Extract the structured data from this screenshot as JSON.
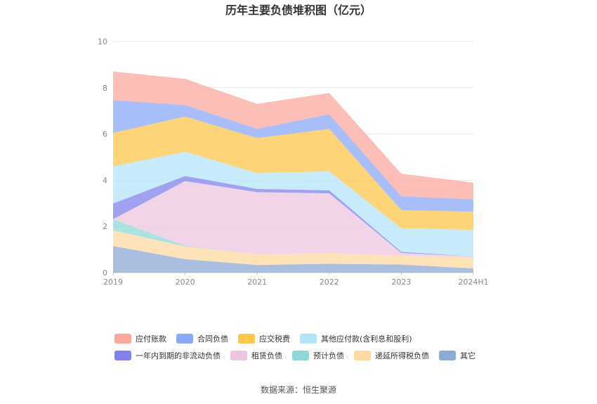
{
  "source_text": "数据来源：恒生聚源",
  "chart_data": {
    "type": "area",
    "stacked": true,
    "title": "历年主要负债堆积图（亿元）",
    "xlabel": "",
    "ylabel": "",
    "categories": [
      "2019",
      "2020",
      "2021",
      "2022",
      "2023",
      "2024H1"
    ],
    "ylim": [
      0,
      10
    ],
    "yticks": [
      0,
      2,
      4,
      6,
      8,
      10
    ],
    "grid": true,
    "legend_position": "bottom",
    "series": [
      {
        "name": "其它",
        "color": "#8eaad6",
        "values": [
          1.15,
          0.58,
          0.33,
          0.38,
          0.35,
          0.18
        ]
      },
      {
        "name": "递延所得税负债",
        "color": "#fdd9a2",
        "values": [
          0.68,
          0.55,
          0.47,
          0.47,
          0.38,
          0.47
        ]
      },
      {
        "name": "预计负债",
        "color": "#8fd8d8",
        "values": [
          0.48,
          0.03,
          0.0,
          0.0,
          0.0,
          0.0
        ]
      },
      {
        "name": "租赁负债",
        "color": "#ecc5e0",
        "values": [
          0.0,
          2.8,
          2.68,
          2.58,
          0.12,
          0.05
        ]
      },
      {
        "name": "一年内到期的非流动负债",
        "color": "#8181ee",
        "values": [
          0.68,
          0.22,
          0.14,
          0.13,
          0.05,
          0.0
        ]
      },
      {
        "name": "其他应付款(含利息和股利)",
        "color": "#b4e4f8",
        "values": [
          1.61,
          1.05,
          0.68,
          0.82,
          1.02,
          1.15
        ]
      },
      {
        "name": "应交税费",
        "color": "#fec64b",
        "values": [
          1.44,
          1.52,
          1.52,
          1.84,
          0.78,
          0.79
        ]
      },
      {
        "name": "合同负债",
        "color": "#8aa8f8",
        "values": [
          1.42,
          0.5,
          0.4,
          0.63,
          0.6,
          0.53
        ]
      },
      {
        "name": "应付账款",
        "color": "#fca8a0",
        "values": [
          1.24,
          1.13,
          1.08,
          0.92,
          0.98,
          0.72
        ]
      }
    ],
    "legend_order": [
      "应付账款",
      "合同负债",
      "应交税费",
      "其他应付款(含利息和股利)",
      "一年内到期的非流动负债",
      "租赁负债",
      "预计负债",
      "递延所得税负债",
      "其它"
    ]
  }
}
